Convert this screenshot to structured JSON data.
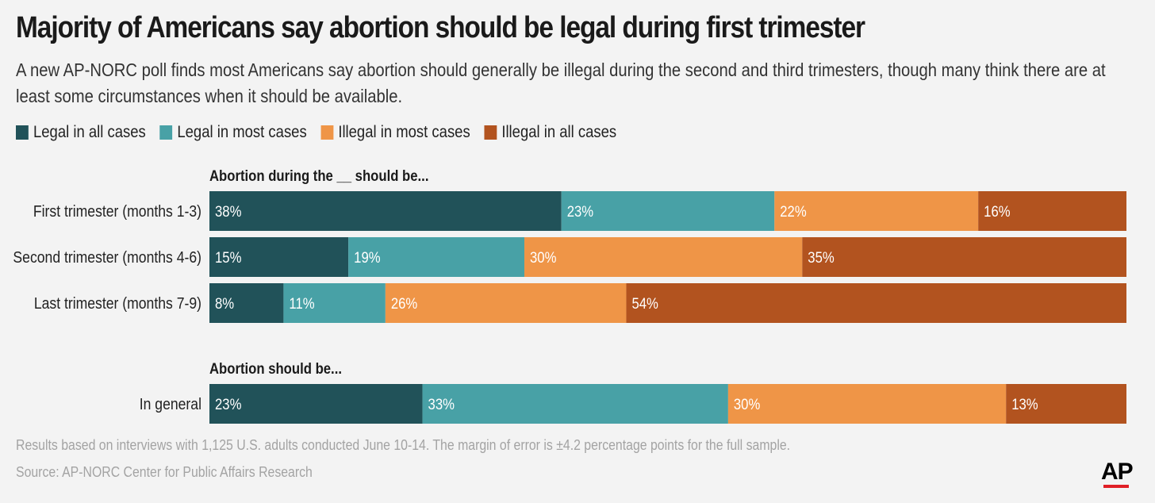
{
  "title": "Majority of Americans say abortion should be legal during first trimester",
  "subtitle": "A new AP-NORC poll finds most Americans say abortion should generally be illegal during the second and third trimesters, though many think there are at least some circumstances when it should be available.",
  "legend": [
    {
      "label": "Legal in all cases",
      "color": "#215259"
    },
    {
      "label": "Legal in most cases",
      "color": "#48a1a6"
    },
    {
      "label": "Illegal in most cases",
      "color": "#ef9547"
    },
    {
      "label": "Illegal in all cases",
      "color": "#b2531f"
    }
  ],
  "chart_data": {
    "type": "bar",
    "orientation": "horizontal",
    "stacked": true,
    "series_names": [
      "Legal in all cases",
      "Legal in most cases",
      "Illegal in most cases",
      "Illegal in all cases"
    ],
    "colors": [
      "#215259",
      "#48a1a6",
      "#ef9547",
      "#b2531f"
    ],
    "groups": [
      {
        "heading": "Abortion during the __ should be...",
        "rows": [
          {
            "label": "First trimester (months 1-3)",
            "values": [
              38,
              23,
              22,
              16
            ]
          },
          {
            "label": "Second trimester (months 4-6)",
            "values": [
              15,
              19,
              30,
              35
            ]
          },
          {
            "label": "Last trimester (months 7-9)",
            "values": [
              8,
              11,
              26,
              54
            ]
          }
        ]
      },
      {
        "heading": "Abortion should be...",
        "rows": [
          {
            "label": "In general",
            "values": [
              23,
              33,
              30,
              13
            ]
          }
        ]
      }
    ],
    "value_suffix": "%"
  },
  "footnote": "Results based on interviews with 1,125 U.S. adults conducted June 10-14. The margin of error is ±4.2 percentage points for the full sample.",
  "source": "Source: AP-NORC Center for Public Affairs Research",
  "logo": "AP"
}
